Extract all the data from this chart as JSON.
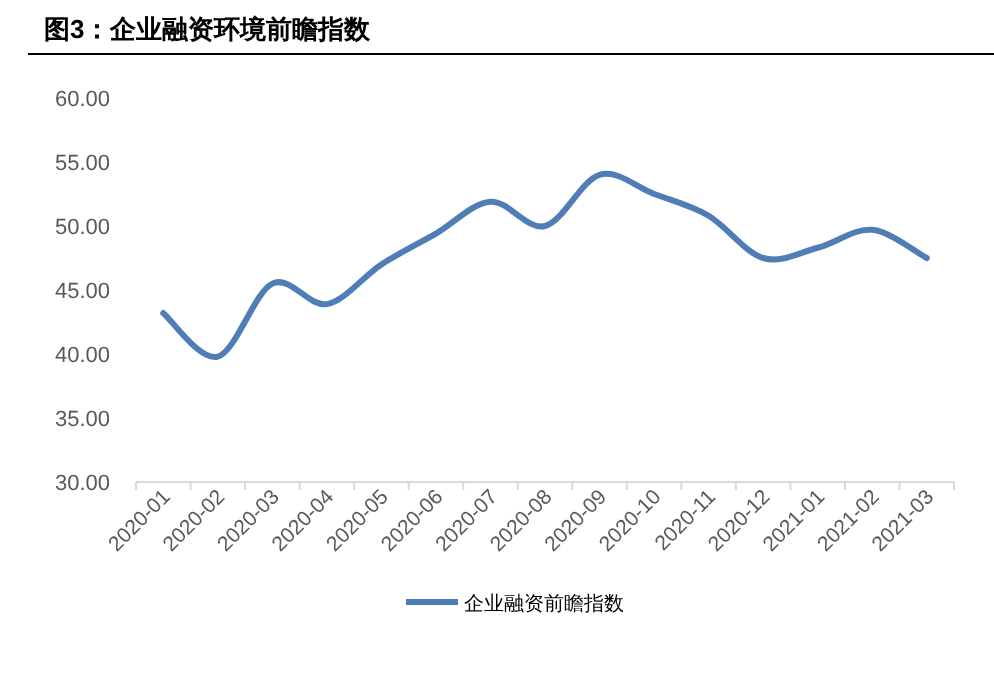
{
  "chart_data": {
    "type": "line",
    "title": "图3：企业融资环境前瞻指数",
    "categories": [
      "2020-01",
      "2020-02",
      "2020-03",
      "2020-04",
      "2020-05",
      "2020-06",
      "2020-07",
      "2020-08",
      "2020-09",
      "2020-10",
      "2020-11",
      "2020-12",
      "2021-01",
      "2021-02",
      "2021-03"
    ],
    "series": [
      {
        "name": "企业融资前瞻指数",
        "color": "#4f7db5",
        "values": [
          43.2,
          39.8,
          45.5,
          43.9,
          47.0,
          49.4,
          51.9,
          50.0,
          54.0,
          52.5,
          50.8,
          47.5,
          48.3,
          49.7,
          47.5
        ]
      }
    ],
    "ylim": [
      30,
      60
    ],
    "yticks": [
      {
        "value": 30,
        "label": "30.00"
      },
      {
        "value": 35,
        "label": "35.00"
      },
      {
        "value": 40,
        "label": "40.00"
      },
      {
        "value": 45,
        "label": "45.00"
      },
      {
        "value": 50,
        "label": "50.00"
      },
      {
        "value": 55,
        "label": "55.00"
      },
      {
        "value": 60,
        "label": "60.00"
      }
    ],
    "grid": false,
    "legend": "bottom",
    "marker": "none",
    "line_style": "solid"
  }
}
